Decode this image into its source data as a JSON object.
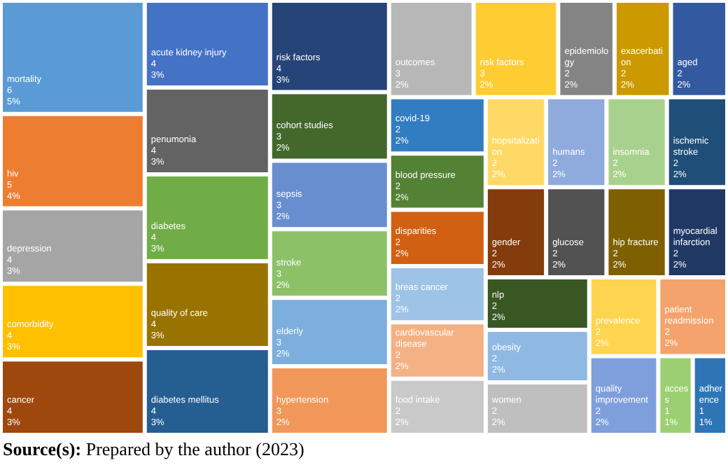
{
  "chart_data": {
    "type": "other",
    "categories": [
      "mortality",
      "hiv",
      "depression",
      "comorbidity",
      "cancer",
      "acute kidney injury",
      "penumonia",
      "diabetes",
      "quality of care",
      "diabetes mellitus",
      "risk factors",
      "cohort studies",
      "sepsis",
      "stroke",
      "elderly",
      "hypertension",
      "outcomes",
      "risk factors",
      "epidemiology",
      "exacerbation",
      "aged",
      "covid-19",
      "blood pressure",
      "disparities",
      "breas cancer",
      "cardiovascular disease",
      "food intake",
      "hopsitalization",
      "humans",
      "insomnia",
      "ischemic stroke",
      "gender",
      "glucose",
      "hip fracture",
      "myocardial infarction",
      "nlp",
      "obesity",
      "women",
      "prevalence",
      "patient readmission",
      "quality improvement",
      "access",
      "adherence"
    ],
    "values": [
      6,
      5,
      4,
      4,
      4,
      4,
      4,
      4,
      4,
      4,
      4,
      3,
      3,
      3,
      3,
      3,
      3,
      3,
      2,
      2,
      2,
      2,
      2,
      2,
      2,
      2,
      2,
      2,
      2,
      2,
      2,
      2,
      2,
      2,
      2,
      2,
      2,
      2,
      2,
      2,
      2,
      1,
      1
    ],
    "value_labels": [
      "6\n5%",
      "5\n4%",
      "4\n3%",
      "4\n3%",
      "4\n3%",
      "4\n3%",
      "4\n3%",
      "4\n3%",
      "4\n3%",
      "4\n3%",
      "4\n3%",
      "3\n2%",
      "3\n2%",
      "3\n2%",
      "3\n2%",
      "3\n2%",
      "3\n2%",
      "3\n2%",
      "2\n2%",
      "2\n2%",
      "2\n2%",
      "2\n2%",
      "2\n2%",
      "2\n2%",
      "2\n2%",
      "2\n2%",
      "2\n2%",
      "2\n2%",
      "2\n2%",
      "2\n2%",
      "2\n2%",
      "2\n2%",
      "2\n2%",
      "2\n2%",
      "2\n2%",
      "2\n2%",
      "2\n2%",
      "2\n2%",
      "2\n2%",
      "2\n2%",
      "2\n2%",
      "1\n1%",
      "1\n1%"
    ],
    "colors": [
      "#5b9bd5",
      "#ed7d31",
      "#a5a5a5",
      "#ffc000",
      "#9e480e",
      "#4472c4",
      "#636363",
      "#70ad47",
      "#997300",
      "#255e91",
      "#264478",
      "#43682b",
      "#698ed0",
      "#8cc168",
      "#7cafdd",
      "#f1975a",
      "#b7b7b7",
      "#ffcd33",
      "#848484",
      "#cc9a00",
      "#335aa1",
      "#327dc2",
      "#548235",
      "#d26012",
      "#9dc3e6",
      "#f4b183",
      "#c9c9c9",
      "#ffd966",
      "#8faadc",
      "#a9d18e",
      "#1f4e79",
      "#843c0c",
      "#525252",
      "#7f6000",
      "#203864",
      "#385723",
      "#8fb8e3",
      "#bfbfbf",
      "#ffd44f",
      "#f4a36c",
      "#7f9fdc",
      "#9ccf72",
      "#2e75b6"
    ],
    "annotations": [
      "Source(s): Prepared by the author (2023)"
    ]
  }
}
